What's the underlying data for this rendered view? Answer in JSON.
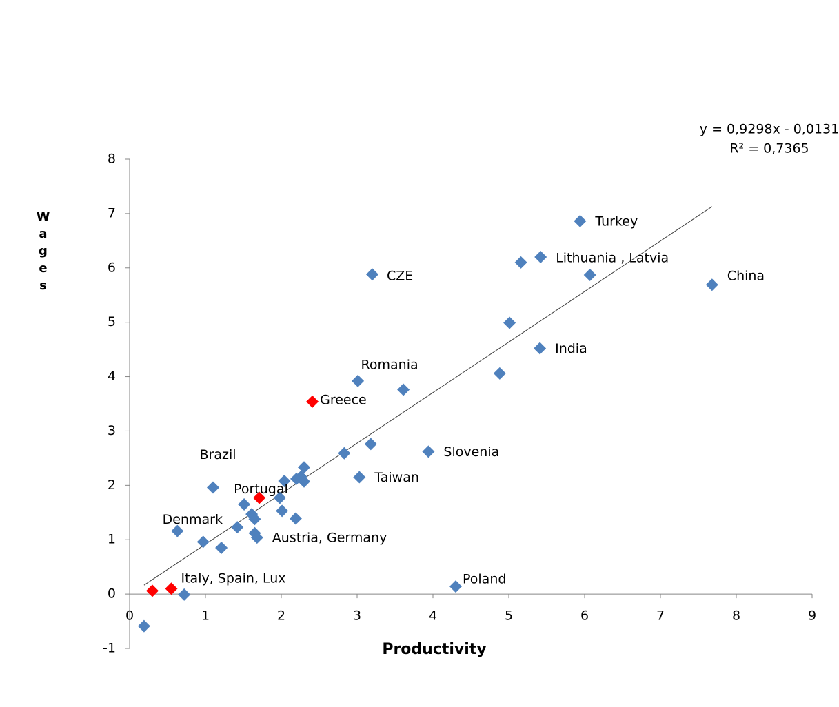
{
  "chart_data": {
    "type": "scatter",
    "x_label": "Productivity",
    "y_label": "Wages",
    "xlim": [
      0,
      9
    ],
    "xticks": [
      0,
      1,
      2,
      3,
      4,
      5,
      6,
      7,
      8,
      9
    ],
    "ylim": [
      -1,
      8
    ],
    "yticks": [
      -1,
      0,
      1,
      2,
      3,
      4,
      5,
      6,
      7,
      8
    ],
    "grid": false,
    "series": [
      {
        "color": "#4f81bd",
        "x": [
          0.19,
          0.72,
          0.63,
          0.97,
          1.21,
          1.1,
          1.42,
          1.51,
          1.61,
          1.65,
          1.65,
          1.68,
          1.98,
          2.01,
          2.04,
          2.19,
          2.2,
          2.26,
          2.3,
          2.3,
          2.83,
          3.01,
          3.03,
          3.18,
          3.2,
          3.61,
          3.94,
          4.3,
          4.88,
          5.01,
          5.16,
          5.42,
          5.41,
          5.94,
          6.07,
          7.68
        ],
        "values": [
          -0.59,
          -0.01,
          1.16,
          0.96,
          0.85,
          1.96,
          1.23,
          1.65,
          1.47,
          1.38,
          1.12,
          1.04,
          1.77,
          1.53,
          2.08,
          1.39,
          2.12,
          2.16,
          2.33,
          2.07,
          2.59,
          3.92,
          2.15,
          2.76,
          5.88,
          3.76,
          2.62,
          0.14,
          4.06,
          4.99,
          6.1,
          6.2,
          4.52,
          6.86,
          5.87,
          5.69
        ],
        "labels": [
          null,
          null,
          "Denmark",
          null,
          null,
          "Brazil",
          null,
          null,
          null,
          null,
          null,
          "Austria, Germany",
          null,
          null,
          null,
          null,
          null,
          null,
          null,
          null,
          null,
          "Romania",
          "Taiwan",
          null,
          "CZE",
          null,
          "Slovenia",
          "Poland",
          null,
          null,
          null,
          "Lithuania , Latvia",
          "India",
          "Turkey",
          null,
          "China"
        ]
      },
      {
        "color": "#ff0000",
        "x": [
          0.3,
          0.55,
          1.71,
          2.41
        ],
        "values": [
          0.06,
          0.1,
          1.77,
          3.54
        ],
        "labels": [
          null,
          "Italy, Spain, Lux",
          "Portugal",
          "Greece"
        ]
      }
    ],
    "trendline": {
      "slope": 0.9298,
      "intercept": -0.0131,
      "equation": "y = 0,9298x - 0,0131",
      "r2": "R² = 0,7365"
    }
  }
}
